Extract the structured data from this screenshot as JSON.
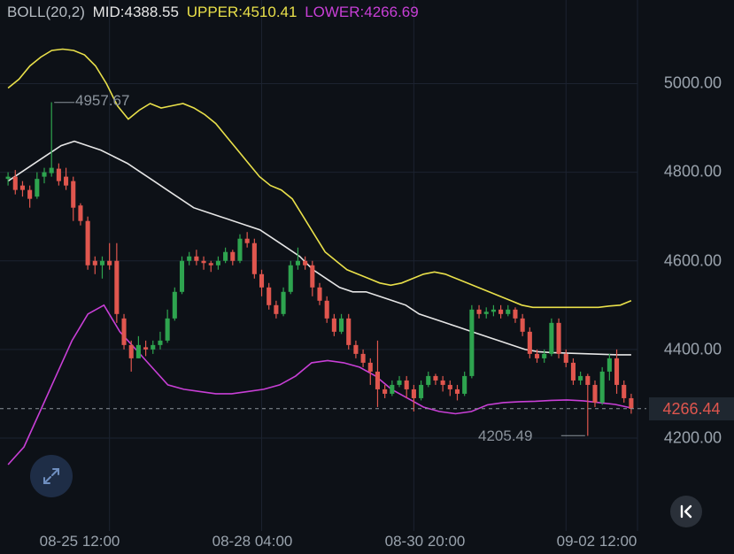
{
  "legend": {
    "indicator": "BOLL(20,2)",
    "mid_label": "MID:",
    "mid_value": "4388.55",
    "upper_label": "UPPER:",
    "upper_value": "4510.41",
    "lower_label": "LOWER:",
    "lower_value": "4266.69"
  },
  "colors": {
    "background": "#0d1117",
    "up": "#2ea44f",
    "down": "#e0564e",
    "upper": "#e9e04a",
    "mid": "#e6e6e6",
    "lower": "#c83fd6",
    "grid": "#1c2330",
    "axis_text": "#9aa3ad"
  },
  "annotations": {
    "high_label": "4957.67",
    "low_label": "4205.49",
    "current_price": "4266.44"
  },
  "controls": {
    "expand_icon": "expand-arrows-icon",
    "back_icon": "chevron-left-bar-icon"
  },
  "chart_data": {
    "type": "candlestick",
    "y_ticks": [
      "5000.00",
      "4800.00",
      "4600.00",
      "4400.00",
      "4200.00"
    ],
    "y_tick_values": [
      5000,
      4800,
      4600,
      4400,
      4200
    ],
    "x_ticks": [
      "08-25 12:00",
      "08-28 04:00",
      "08-30 20:00",
      "09-02 12:00"
    ],
    "x_tick_index": [
      14,
      35,
      56,
      77
    ],
    "ylim": [
      4130,
      5120
    ],
    "current_price": 4266.44,
    "high_mark": {
      "value": 4957.67,
      "index": 6
    },
    "low_mark": {
      "value": 4205.49,
      "index": 80
    },
    "candles": [
      [
        4785,
        4790,
        4770,
        4800
      ],
      [
        4790,
        4760,
        4750,
        4805
      ],
      [
        4770,
        4760,
        4745,
        4780
      ],
      [
        4760,
        4740,
        4720,
        4770
      ],
      [
        4745,
        4785,
        4740,
        4800
      ],
      [
        4790,
        4800,
        4775,
        4810
      ],
      [
        4798,
        4810,
        4790,
        4958
      ],
      [
        4808,
        4780,
        4770,
        4820
      ],
      [
        4790,
        4770,
        4760,
        4810
      ],
      [
        4780,
        4720,
        4690,
        4790
      ],
      [
        4725,
        4690,
        4680,
        4730
      ],
      [
        4690,
        4590,
        4580,
        4700
      ],
      [
        4600,
        4590,
        4570,
        4610
      ],
      [
        4590,
        4600,
        4560,
        4610
      ],
      [
        4600,
        4590,
        4580,
        4640
      ],
      [
        4600,
        4480,
        4460,
        4640
      ],
      [
        4470,
        4410,
        4400,
        4480
      ],
      [
        4410,
        4380,
        4350,
        4420
      ],
      [
        4380,
        4410,
        4380,
        4430
      ],
      [
        4405,
        4400,
        4385,
        4420
      ],
      [
        4400,
        4410,
        4390,
        4420
      ],
      [
        4410,
        4420,
        4400,
        4440
      ],
      [
        4420,
        4470,
        4415,
        4490
      ],
      [
        4470,
        4530,
        4465,
        4540
      ],
      [
        4530,
        4600,
        4525,
        4610
      ],
      [
        4600,
        4610,
        4590,
        4620
      ],
      [
        4610,
        4600,
        4590,
        4625
      ],
      [
        4600,
        4595,
        4580,
        4610
      ],
      [
        4595,
        4590,
        4575,
        4600
      ],
      [
        4590,
        4600,
        4580,
        4610
      ],
      [
        4600,
        4620,
        4595,
        4630
      ],
      [
        4620,
        4600,
        4590,
        4625
      ],
      [
        4600,
        4650,
        4595,
        4660
      ],
      [
        4650,
        4640,
        4630,
        4665
      ],
      [
        4640,
        4570,
        4560,
        4650
      ],
      [
        4570,
        4540,
        4520,
        4580
      ],
      [
        4540,
        4500,
        4490,
        4550
      ],
      [
        4500,
        4480,
        4470,
        4510
      ],
      [
        4480,
        4530,
        4475,
        4540
      ],
      [
        4530,
        4590,
        4525,
        4600
      ],
      [
        4590,
        4600,
        4580,
        4630
      ],
      [
        4600,
        4590,
        4580,
        4610
      ],
      [
        4590,
        4540,
        4520,
        4600
      ],
      [
        4540,
        4510,
        4500,
        4550
      ],
      [
        4510,
        4470,
        4460,
        4520
      ],
      [
        4470,
        4440,
        4430,
        4480
      ],
      [
        4440,
        4470,
        4435,
        4480
      ],
      [
        4470,
        4410,
        4400,
        4480
      ],
      [
        4410,
        4390,
        4380,
        4420
      ],
      [
        4390,
        4370,
        4360,
        4400
      ],
      [
        4370,
        4350,
        4320,
        4380
      ],
      [
        4350,
        4310,
        4270,
        4420
      ],
      [
        4310,
        4300,
        4290,
        4320
      ],
      [
        4300,
        4320,
        4295,
        4330
      ],
      [
        4320,
        4330,
        4315,
        4340
      ],
      [
        4330,
        4310,
        4290,
        4340
      ],
      [
        4310,
        4290,
        4260,
        4320
      ],
      [
        4290,
        4320,
        4285,
        4330
      ],
      [
        4320,
        4340,
        4315,
        4350
      ],
      [
        4340,
        4330,
        4320,
        4345
      ],
      [
        4330,
        4320,
        4305,
        4340
      ],
      [
        4320,
        4310,
        4295,
        4330
      ],
      [
        4310,
        4300,
        4285,
        4320
      ],
      [
        4300,
        4340,
        4295,
        4350
      ],
      [
        4340,
        4490,
        4335,
        4500
      ],
      [
        4490,
        4480,
        4470,
        4500
      ],
      [
        4480,
        4485,
        4470,
        4495
      ],
      [
        4485,
        4490,
        4475,
        4500
      ],
      [
        4490,
        4480,
        4470,
        4500
      ],
      [
        4480,
        4490,
        4475,
        4500
      ],
      [
        4490,
        4470,
        4460,
        4495
      ],
      [
        4470,
        4440,
        4430,
        4480
      ],
      [
        4440,
        4390,
        4380,
        4450
      ],
      [
        4390,
        4380,
        4370,
        4400
      ],
      [
        4380,
        4390,
        4370,
        4400
      ],
      [
        4390,
        4460,
        4385,
        4470
      ],
      [
        4460,
        4390,
        4380,
        4470
      ],
      [
        4390,
        4370,
        4360,
        4400
      ],
      [
        4370,
        4330,
        4320,
        4380
      ],
      [
        4330,
        4340,
        4320,
        4350
      ],
      [
        4340,
        4320,
        4205,
        4345
      ],
      [
        4320,
        4280,
        4270,
        4330
      ],
      [
        4280,
        4350,
        4275,
        4360
      ],
      [
        4350,
        4380,
        4330,
        4390
      ],
      [
        4380,
        4320,
        4300,
        4400
      ],
      [
        4320,
        4290,
        4280,
        4330
      ],
      [
        4290,
        4266,
        4255,
        4300
      ]
    ],
    "series": [
      {
        "name": "UPPER",
        "values": [
          4990,
          5010,
          5040,
          5060,
          5075,
          5078,
          5075,
          5065,
          5040,
          5000,
          4950,
          4920,
          4940,
          4955,
          4945,
          4950,
          4955,
          4945,
          4930,
          4910,
          4880,
          4850,
          4820,
          4790,
          4770,
          4760,
          4740,
          4700,
          4660,
          4620,
          4600,
          4580,
          4570,
          4560,
          4550,
          4545,
          4550,
          4560,
          4570,
          4575,
          4570,
          4560,
          4550,
          4540,
          4530,
          4520,
          4510,
          4500,
          4495,
          4495,
          4495,
          4495,
          4495,
          4495,
          4495,
          4498,
          4500,
          4510
        ]
      },
      {
        "name": "MID",
        "values": [
          4780,
          4800,
          4820,
          4840,
          4860,
          4870,
          4860,
          4850,
          4835,
          4820,
          4800,
          4780,
          4760,
          4740,
          4720,
          4710,
          4700,
          4690,
          4680,
          4670,
          4650,
          4630,
          4610,
          4580,
          4560,
          4540,
          4530,
          4530,
          4520,
          4510,
          4500,
          4480,
          4470,
          4460,
          4450,
          4440,
          4430,
          4420,
          4410,
          4400,
          4395,
          4393,
          4392,
          4391,
          4390,
          4389,
          4388,
          4388
        ]
      },
      {
        "name": "LOWER",
        "values": [
          4140,
          4180,
          4260,
          4340,
          4420,
          4480,
          4500,
          4440,
          4400,
          4360,
          4320,
          4310,
          4305,
          4300,
          4300,
          4305,
          4310,
          4320,
          4340,
          4370,
          4375,
          4370,
          4360,
          4340,
          4310,
          4290,
          4270,
          4260,
          4255,
          4260,
          4275,
          4280,
          4282,
          4283,
          4285,
          4286,
          4284,
          4280,
          4276,
          4268
        ]
      }
    ]
  }
}
